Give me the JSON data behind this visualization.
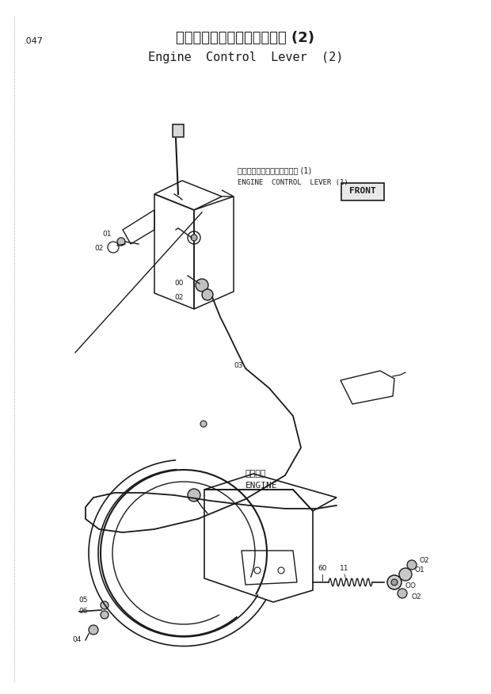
{
  "title_ja": "エンジンコントロールレバー (2)",
  "title_en": "Engine  Control  Lever  (2)",
  "page_num": ".047",
  "bg_color": "#ffffff",
  "line_color": "#1a1a1a",
  "text_color": "#1a1a1a",
  "annotations": {
    "lever_label_ja": "エンジンコントロールレバー (1)",
    "lever_label_en": "ENGINE  CONTROL  LEVER (1)",
    "engine_label_ja": "エンジン",
    "engine_label_en": "ENGINE",
    "front_label": "FRONT"
  },
  "figsize": [
    6.2,
    8.76
  ],
  "dpi": 100
}
